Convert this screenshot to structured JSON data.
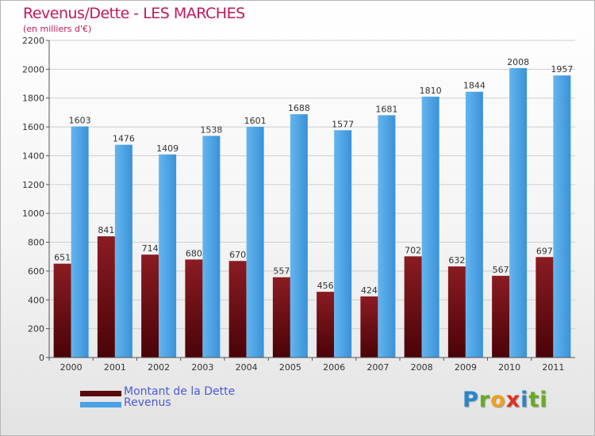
{
  "header": {
    "title": "Revenus/Dette - LES MARCHES",
    "subtitle": "(en milliers d'€)"
  },
  "legend": [
    {
      "label": "Montant de la Dette",
      "color": "#7a0d14"
    },
    {
      "label": "Revenus",
      "color": "#4aa3e6"
    }
  ],
  "logo": {
    "text": "Proxiti",
    "letters": [
      "P",
      "r",
      "o",
      "x",
      "i",
      "ti"
    ]
  },
  "chart_data": {
    "type": "bar",
    "title": "Revenus/Dette - LES MARCHES",
    "ylabel": "(en milliers d'€)",
    "xlabel": "",
    "categories": [
      "2000",
      "2001",
      "2002",
      "2003",
      "2004",
      "2005",
      "2006",
      "2007",
      "2008",
      "2009",
      "2010",
      "2011"
    ],
    "series": [
      {
        "name": "Montant de la Dette",
        "values": [
          651,
          841,
          714,
          680,
          670,
          557,
          456,
          424,
          702,
          632,
          567,
          697
        ]
      },
      {
        "name": "Revenus",
        "values": [
          1603,
          1476,
          1409,
          1538,
          1601,
          1688,
          1577,
          1681,
          1810,
          1844,
          2008,
          1957
        ]
      }
    ],
    "ylim": [
      0,
      2200
    ],
    "yticks": [
      0,
      200,
      400,
      600,
      800,
      1000,
      1200,
      1400,
      1600,
      1800,
      2000,
      2200
    ],
    "grid": true,
    "legend_position": "bottom-left"
  }
}
